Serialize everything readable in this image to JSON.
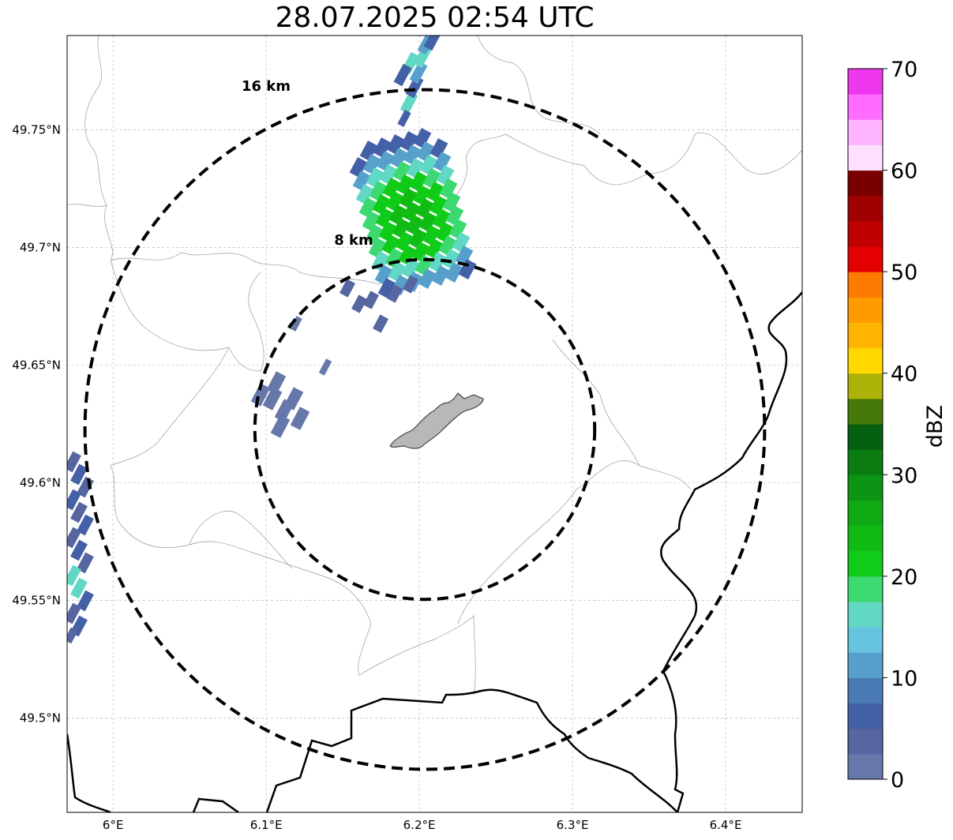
{
  "title": "28.07.2025 02:54 UTC",
  "map": {
    "lon_range": [
      5.97,
      6.45
    ],
    "lat_range": [
      49.46,
      49.79
    ],
    "lat_ticks": [
      {
        "value": 49.75,
        "label": "49.75°N"
      },
      {
        "value": 49.7,
        "label": "49.7°N"
      },
      {
        "value": 49.65,
        "label": "49.65°N"
      },
      {
        "value": 49.6,
        "label": "49.6°N"
      },
      {
        "value": 49.55,
        "label": "49.55°N"
      },
      {
        "value": 49.5,
        "label": "49.5°N"
      }
    ],
    "lon_ticks": [
      {
        "value": 6.0,
        "label": "6°E"
      },
      {
        "value": 6.1,
        "label": "6.1°E"
      },
      {
        "value": 6.2,
        "label": "6.2°E"
      },
      {
        "value": 6.3,
        "label": "6.3°E"
      },
      {
        "value": 6.4,
        "label": "6.4°E"
      }
    ],
    "rings": [
      {
        "radius_km": 8,
        "label": "8 km"
      },
      {
        "radius_km": 16,
        "label": "16 km"
      }
    ],
    "grid": true
  },
  "colorbar": {
    "label": "dBZ",
    "min": 0,
    "max": 70,
    "ticks": [
      0,
      10,
      20,
      30,
      40,
      50,
      60,
      70
    ],
    "colors": [
      "#6677aa",
      "#5566a0",
      "#4460a6",
      "#4a7ab4",
      "#58a0cc",
      "#66c4e0",
      "#60d8c4",
      "#3cd870",
      "#10cc18",
      "#10bc14",
      "#10aa14",
      "#0c9414",
      "#0a7c12",
      "#056010",
      "#467a08",
      "#acb208",
      "#ffd800",
      "#ffb400",
      "#ff9a00",
      "#ff7a00",
      "#e40000",
      "#c00000",
      "#a00000",
      "#7a0000",
      "#ffe0ff",
      "#ffb4ff",
      "#ff6cff",
      "#ee36ee"
    ]
  }
}
